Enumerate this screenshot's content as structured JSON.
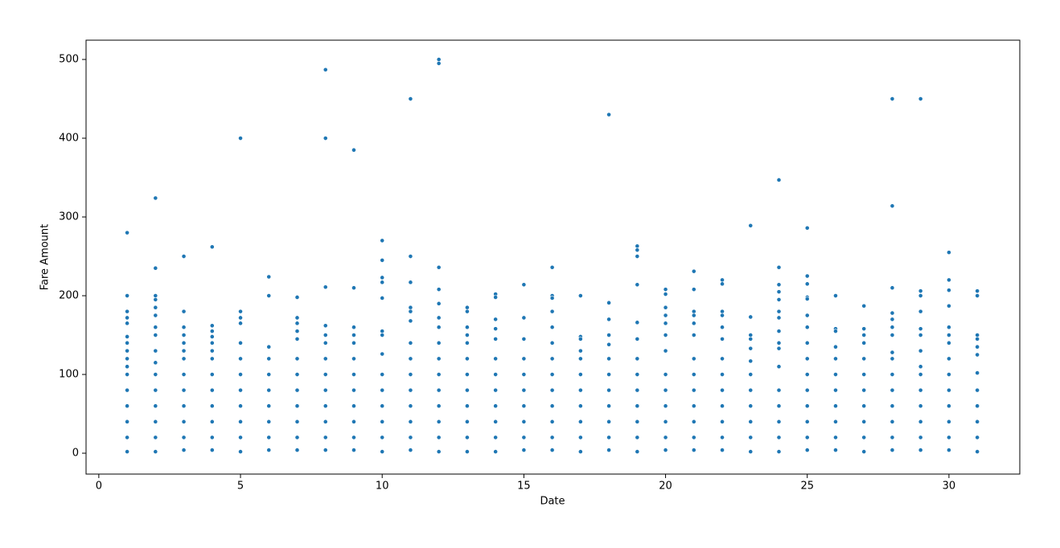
{
  "chart_data": {
    "type": "scatter",
    "xlabel": "Date",
    "ylabel": "Fare Amount",
    "color": "#1f77b4",
    "xlim": [
      -0.45,
      32.5
    ],
    "ylim": [
      -26.5,
      524.5
    ],
    "xticks": [
      0,
      5,
      10,
      15,
      20,
      25,
      30
    ],
    "yticks": [
      0,
      100,
      200,
      300,
      400,
      500
    ],
    "grid": false,
    "x": [
      1,
      1,
      1,
      1,
      1,
      1,
      1,
      1,
      1,
      1,
      1,
      1,
      1,
      1,
      1,
      1,
      2,
      2,
      2,
      2,
      2,
      2,
      2,
      2,
      2,
      2,
      2,
      2,
      2,
      2,
      2,
      2,
      3,
      3,
      3,
      3,
      3,
      3,
      3,
      3,
      3,
      3,
      3,
      3,
      3,
      4,
      4,
      4,
      4,
      4,
      4,
      4,
      4,
      4,
      4,
      4,
      4,
      4,
      5,
      5,
      5,
      5,
      5,
      5,
      5,
      5,
      5,
      5,
      5,
      5,
      6,
      6,
      6,
      6,
      6,
      6,
      6,
      6,
      6,
      6,
      7,
      7,
      7,
      7,
      7,
      7,
      7,
      7,
      7,
      7,
      7,
      7,
      8,
      8,
      8,
      8,
      8,
      8,
      8,
      8,
      8,
      8,
      8,
      8,
      8,
      9,
      9,
      9,
      9,
      9,
      9,
      9,
      9,
      9,
      9,
      9,
      9,
      10,
      10,
      10,
      10,
      10,
      10,
      10,
      10,
      10,
      10,
      10,
      10,
      10,
      10,
      11,
      11,
      11,
      11,
      11,
      11,
      11,
      11,
      11,
      11,
      11,
      11,
      11,
      11,
      12,
      12,
      12,
      12,
      12,
      12,
      12,
      12,
      12,
      12,
      12,
      12,
      12,
      12,
      12,
      13,
      13,
      13,
      13,
      13,
      13,
      13,
      13,
      13,
      13,
      13,
      13,
      14,
      14,
      14,
      14,
      14,
      14,
      14,
      14,
      14,
      14,
      14,
      14,
      15,
      15,
      15,
      15,
      15,
      15,
      15,
      15,
      15,
      15,
      16,
      16,
      16,
      16,
      16,
      16,
      16,
      16,
      16,
      16,
      16,
      16,
      16,
      17,
      17,
      17,
      17,
      17,
      17,
      17,
      17,
      17,
      17,
      17,
      18,
      18,
      18,
      18,
      18,
      18,
      18,
      18,
      18,
      18,
      18,
      18,
      19,
      19,
      19,
      19,
      19,
      19,
      19,
      19,
      19,
      19,
      19,
      19,
      19,
      20,
      20,
      20,
      20,
      20,
      20,
      20,
      20,
      20,
      20,
      20,
      20,
      20,
      21,
      21,
      21,
      21,
      21,
      21,
      21,
      21,
      21,
      21,
      21,
      21,
      21,
      22,
      22,
      22,
      22,
      22,
      22,
      22,
      22,
      22,
      22,
      22,
      22,
      22,
      23,
      23,
      23,
      23,
      23,
      23,
      23,
      23,
      23,
      23,
      23,
      23,
      24,
      24,
      24,
      24,
      24,
      24,
      24,
      24,
      24,
      24,
      24,
      24,
      24,
      24,
      24,
      24,
      25,
      25,
      25,
      25,
      25,
      25,
      25,
      25,
      25,
      25,
      25,
      25,
      25,
      25,
      25,
      26,
      26,
      26,
      26,
      26,
      26,
      26,
      26,
      26,
      26,
      26,
      27,
      27,
      27,
      27,
      27,
      27,
      27,
      27,
      27,
      27,
      27,
      28,
      28,
      28,
      28,
      28,
      28,
      28,
      28,
      28,
      28,
      28,
      28,
      28,
      28,
      28,
      29,
      29,
      29,
      29,
      29,
      29,
      29,
      29,
      29,
      29,
      29,
      29,
      29,
      29,
      30,
      30,
      30,
      30,
      30,
      30,
      30,
      30,
      30,
      30,
      30,
      30,
      30,
      30,
      31,
      31,
      31,
      31,
      31,
      31,
      31,
      31,
      31,
      31,
      31,
      31
    ],
    "values": [
      280,
      200,
      180,
      172,
      165,
      148,
      140,
      130,
      120,
      110,
      100,
      80,
      60,
      40,
      20,
      2,
      324,
      235,
      200,
      195,
      185,
      175,
      160,
      150,
      130,
      115,
      100,
      80,
      60,
      40,
      20,
      2,
      250,
      180,
      160,
      150,
      140,
      130,
      120,
      100,
      80,
      60,
      40,
      20,
      4,
      262,
      162,
      155,
      148,
      140,
      130,
      120,
      100,
      80,
      60,
      40,
      20,
      4,
      400,
      180,
      172,
      165,
      140,
      120,
      100,
      80,
      60,
      40,
      20,
      2,
      224,
      200,
      135,
      120,
      100,
      80,
      60,
      40,
      20,
      4,
      198,
      172,
      165,
      155,
      145,
      120,
      100,
      80,
      60,
      40,
      20,
      4,
      487,
      400,
      211,
      162,
      150,
      140,
      120,
      100,
      80,
      60,
      40,
      20,
      4,
      385,
      210,
      160,
      150,
      140,
      120,
      100,
      80,
      60,
      40,
      20,
      4,
      270,
      245,
      223,
      217,
      197,
      155,
      150,
      126,
      100,
      80,
      60,
      40,
      20,
      2,
      450,
      250,
      217,
      185,
      180,
      168,
      140,
      120,
      100,
      80,
      60,
      40,
      20,
      4,
      500,
      495,
      236,
      208,
      190,
      172,
      160,
      140,
      120,
      100,
      80,
      60,
      40,
      20,
      2,
      185,
      180,
      160,
      150,
      140,
      120,
      100,
      80,
      60,
      40,
      20,
      2,
      202,
      198,
      170,
      158,
      145,
      120,
      100,
      80,
      60,
      40,
      20,
      2,
      214,
      172,
      145,
      120,
      100,
      80,
      60,
      40,
      20,
      4,
      236,
      200,
      197,
      180,
      160,
      140,
      120,
      100,
      80,
      60,
      40,
      20,
      4,
      200,
      148,
      145,
      130,
      120,
      100,
      80,
      60,
      40,
      20,
      2,
      430,
      191,
      170,
      150,
      138,
      120,
      100,
      80,
      60,
      40,
      20,
      4,
      263,
      258,
      250,
      214,
      166,
      145,
      120,
      100,
      80,
      60,
      40,
      20,
      2,
      208,
      202,
      185,
      175,
      165,
      150,
      130,
      100,
      80,
      60,
      40,
      20,
      4,
      231,
      208,
      180,
      175,
      165,
      150,
      120,
      100,
      80,
      60,
      40,
      20,
      4,
      220,
      215,
      180,
      175,
      160,
      145,
      120,
      100,
      80,
      60,
      40,
      20,
      4,
      289,
      173,
      150,
      145,
      133,
      117,
      100,
      80,
      60,
      40,
      20,
      2,
      347,
      236,
      214,
      205,
      195,
      180,
      172,
      155,
      140,
      133,
      110,
      80,
      60,
      40,
      20,
      2,
      286,
      225,
      215,
      198,
      196,
      175,
      160,
      140,
      120,
      100,
      80,
      60,
      40,
      20,
      4,
      200,
      158,
      155,
      135,
      120,
      100,
      80,
      60,
      40,
      20,
      4,
      187,
      158,
      150,
      140,
      120,
      100,
      80,
      60,
      40,
      20,
      2,
      450,
      314,
      210,
      178,
      170,
      160,
      150,
      128,
      120,
      100,
      80,
      60,
      40,
      20,
      4,
      450,
      206,
      200,
      180,
      158,
      150,
      130,
      110,
      100,
      80,
      60,
      40,
      20,
      4,
      255,
      220,
      207,
      187,
      160,
      150,
      140,
      120,
      100,
      80,
      60,
      40,
      20,
      4,
      206,
      200,
      150,
      145,
      135,
      125,
      102,
      80,
      60,
      40,
      20,
      2
    ]
  }
}
